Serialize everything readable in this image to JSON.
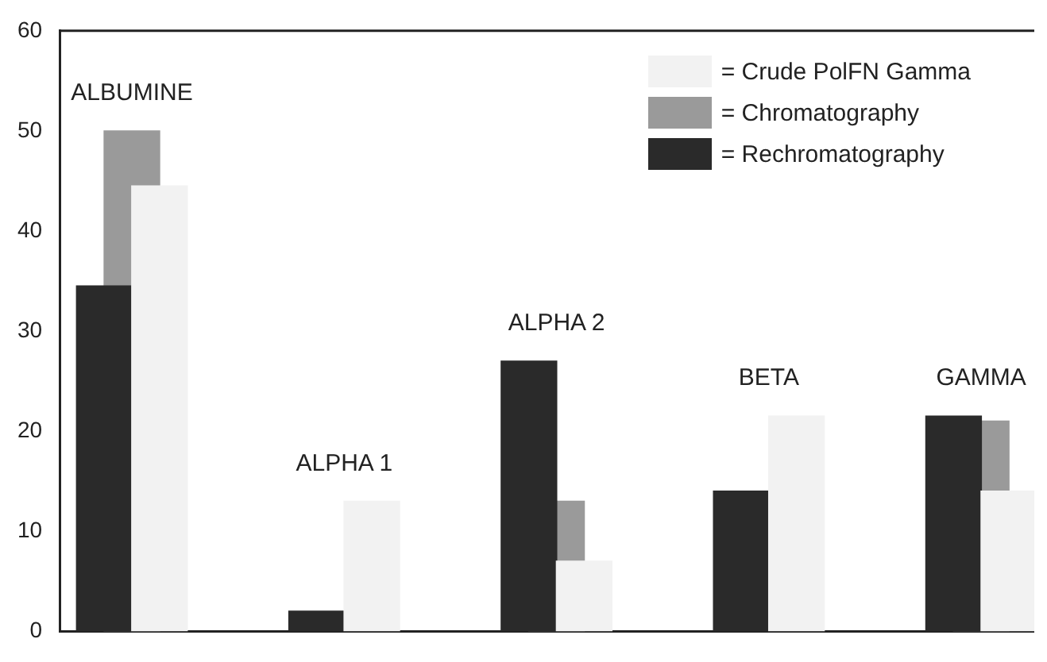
{
  "chart_data": {
    "type": "bar",
    "categories": [
      "ALBUMINE",
      "ALPHA 1",
      "ALPHA 2",
      "BETA",
      "GAMMA"
    ],
    "series": [
      {
        "name": "= Crude PolFN Gamma",
        "color": "#f2f2f2",
        "values": [
          44.5,
          13,
          7,
          21.5,
          14
        ]
      },
      {
        "name": "= Chromatography",
        "color": "#9a9a9a",
        "values": [
          50,
          null,
          13,
          null,
          21
        ]
      },
      {
        "name": "= Rechromatography",
        "color": "#2a2a2a",
        "values": [
          34.5,
          2,
          27,
          14,
          21.5
        ]
      }
    ],
    "ylim": [
      0,
      60
    ],
    "yticks": [
      0,
      10,
      20,
      30,
      40,
      50,
      60
    ],
    "grid": false,
    "legend": "top right",
    "tick_labels": "y"
  }
}
